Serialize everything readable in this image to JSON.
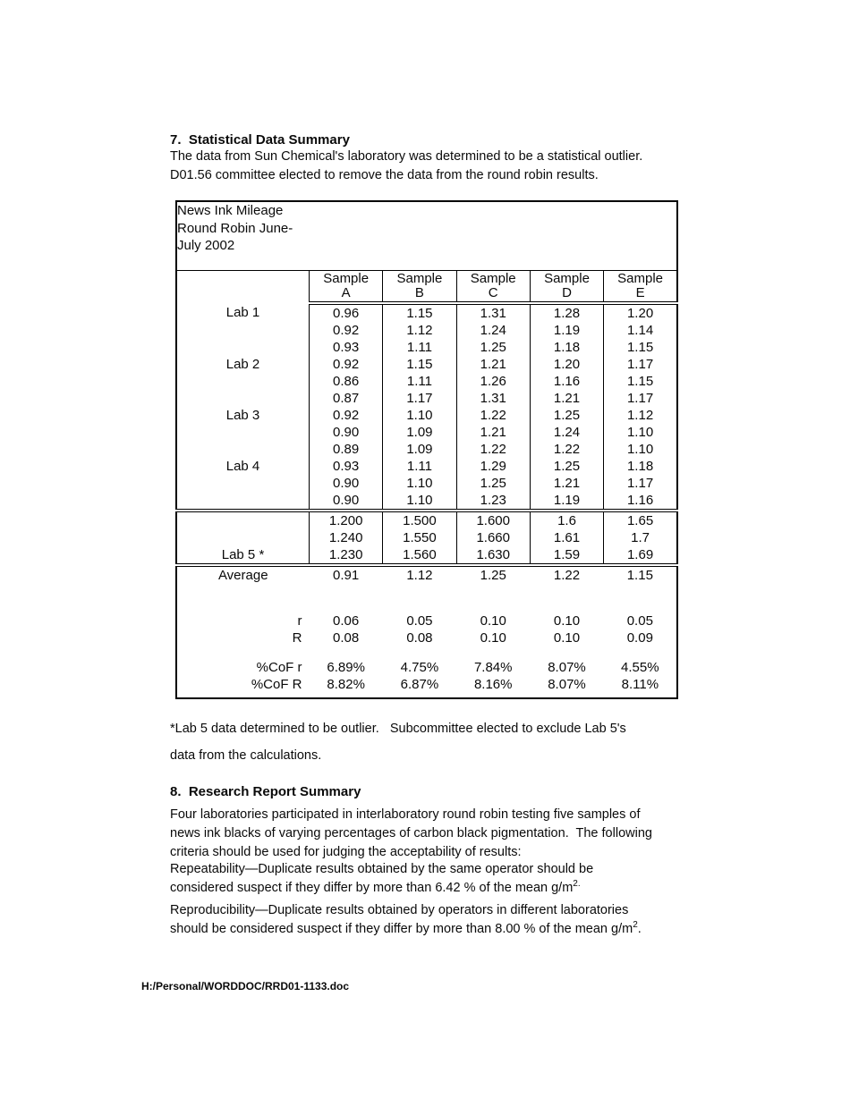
{
  "section7": {
    "heading": "7.  Statistical Data Summary",
    "paragraph": [
      "The data from Sun Chemical's laboratory was determined to be a statistical outlier.",
      "D01.56 committee elected to remove the data from the round robin results."
    ]
  },
  "table": {
    "title_lines": [
      "News Ink Mileage",
      "Round Robin June-",
      "July 2002"
    ],
    "columns": [
      "Sample\nA",
      "Sample\nB",
      "Sample\nC",
      "Sample\nD",
      "Sample\nE"
    ],
    "lab_rows": [
      {
        "label": "Lab 1",
        "values": [
          "0.96",
          "1.15",
          "1.31",
          "1.28",
          "1.20"
        ]
      },
      {
        "label": "",
        "values": [
          "0.92",
          "1.12",
          "1.24",
          "1.19",
          "1.14"
        ]
      },
      {
        "label": "",
        "values": [
          "0.93",
          "1.11",
          "1.25",
          "1.18",
          "1.15"
        ]
      },
      {
        "label": "Lab 2",
        "values": [
          "0.92",
          "1.15",
          "1.21",
          "1.20",
          "1.17"
        ]
      },
      {
        "label": "",
        "values": [
          "0.86",
          "1.11",
          "1.26",
          "1.16",
          "1.15"
        ]
      },
      {
        "label": "",
        "values": [
          "0.87",
          "1.17",
          "1.31",
          "1.21",
          "1.17"
        ]
      },
      {
        "label": "Lab 3",
        "values": [
          "0.92",
          "1.10",
          "1.22",
          "1.25",
          "1.12"
        ]
      },
      {
        "label": "",
        "values": [
          "0.90",
          "1.09",
          "1.21",
          "1.24",
          "1.10"
        ]
      },
      {
        "label": "",
        "values": [
          "0.89",
          "1.09",
          "1.22",
          "1.22",
          "1.10"
        ]
      },
      {
        "label": "Lab 4",
        "values": [
          "0.93",
          "1.11",
          "1.29",
          "1.25",
          "1.18"
        ]
      },
      {
        "label": "",
        "values": [
          "0.90",
          "1.10",
          "1.25",
          "1.21",
          "1.17"
        ]
      },
      {
        "label": "",
        "values": [
          "0.90",
          "1.10",
          "1.23",
          "1.19",
          "1.16"
        ]
      }
    ],
    "lab5_rows": [
      {
        "label": "",
        "values": [
          "1.200",
          "1.500",
          "1.600",
          "1.6",
          "1.65"
        ]
      },
      {
        "label": "",
        "values": [
          "1.240",
          "1.550",
          "1.660",
          "1.61",
          "1.7"
        ]
      },
      {
        "label": "Lab 5 *",
        "values": [
          "1.230",
          "1.560",
          "1.630",
          "1.59",
          "1.69"
        ]
      }
    ],
    "summary": {
      "average": {
        "label": "Average",
        "values": [
          "0.91",
          "1.12",
          "1.25",
          "1.22",
          "1.15"
        ]
      },
      "r": {
        "label": "r",
        "values": [
          "0.06",
          "0.05",
          "0.10",
          "0.10",
          "0.05"
        ]
      },
      "R": {
        "label": "R",
        "values": [
          "0.08",
          "0.08",
          "0.10",
          "0.10",
          "0.09"
        ]
      },
      "cof_r": {
        "label": "%CoF r",
        "values": [
          "6.89%",
          "4.75%",
          "7.84%",
          "8.07%",
          "4.55%"
        ]
      },
      "cof_R": {
        "label": "%CoF R",
        "values": [
          "8.82%",
          "6.87%",
          "8.16%",
          "8.07%",
          "8.11%"
        ]
      }
    }
  },
  "footnote": [
    "*Lab 5 data determined to be outlier.   Subcommittee elected to exclude Lab 5's",
    "data from the calculations."
  ],
  "section8": {
    "heading": "8.  Research Report Summary",
    "paragraph": [
      "Four laboratories participated in interlaboratory round robin testing five samples of",
      "news ink blacks of varying percentages of carbon black pigmentation.  The following",
      "criteria should be used for judging the acceptability of results:"
    ],
    "repeatability": {
      "lines": [
        "Repeatability—Duplicate results obtained by the same operator should be",
        "considered suspect if they differ by more than 6.42 % of the mean g/m"
      ],
      "sup": "2."
    },
    "reproducibility": {
      "lines": [
        "Reproducibility—Duplicate results obtained by operators in different laboratories",
        "should be considered suspect if they differ by more than 8.00 % of the mean g/m"
      ],
      "sup": "2",
      "post": "."
    }
  },
  "footer": {
    "file_path": "H:/Personal/WORDDOC/RRD01-1133.doc"
  }
}
